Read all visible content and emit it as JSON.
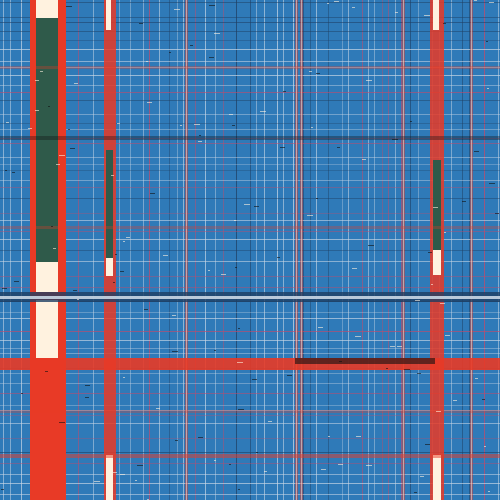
{
  "palette": {
    "background": "#2f7ab8",
    "grid_light": "#c9d7e6",
    "grid_dark": "#1e3f63",
    "red": "#e83a26",
    "cream": "#fff2df",
    "green_dark": "#2f5a4a",
    "pink": "#c24a6b",
    "black": "#111111"
  },
  "art": {
    "description_tag": "abstract-plaid-pattern"
  }
}
